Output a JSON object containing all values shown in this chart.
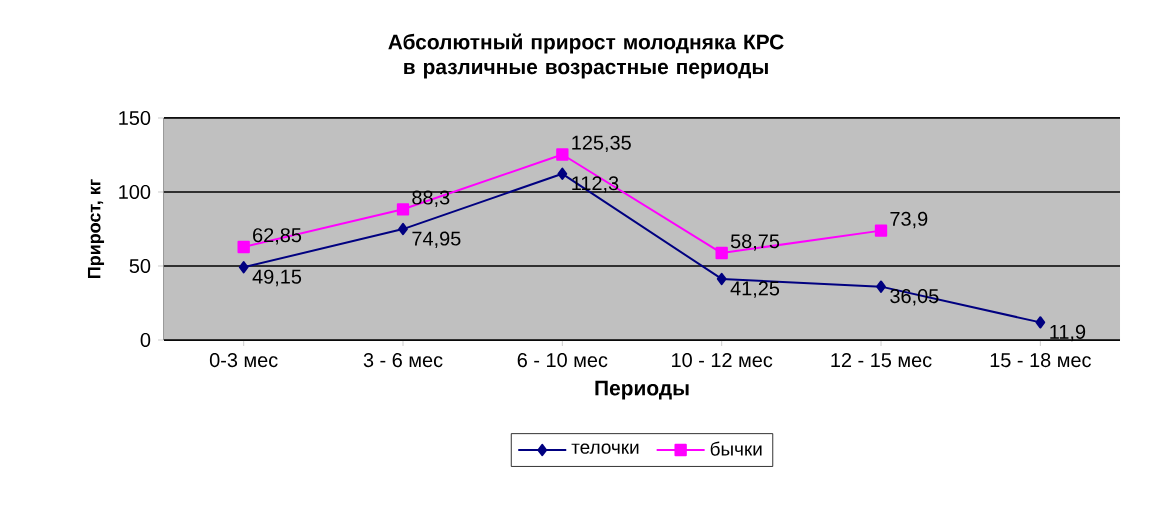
{
  "chart_data": {
    "type": "line",
    "title": "Абсолютный прирост молодняка КРС в различные возрастные периоды",
    "xlabel": "Периоды",
    "ylabel": "Прирост, кг",
    "categories": [
      "0-3 мес",
      "3 - 6 мес",
      "6 - 10 мес",
      "10 - 12 мес",
      "12 - 15 мес",
      "15 - 18 мес"
    ],
    "series": [
      {
        "name": "телочки",
        "color": "#000080",
        "marker": "diamond",
        "values": [
          49.15,
          74.95,
          112.3,
          41.25,
          36.05,
          11.9
        ],
        "value_labels": [
          "49,15",
          "74,95",
          "112,3",
          "41,25",
          "36,05",
          "11,9"
        ]
      },
      {
        "name": "бычки",
        "color": "#ff00ff",
        "marker": "square",
        "values": [
          62.85,
          88.3,
          125.35,
          58.75,
          73.9,
          null
        ],
        "value_labels": [
          "62,85",
          "88,3",
          "125,35",
          "58,75",
          "73,9",
          null
        ]
      }
    ],
    "ylim": [
      0,
      150
    ],
    "yticks": [
      0,
      50,
      100,
      150
    ],
    "grid": "y",
    "legend": "bottom"
  }
}
